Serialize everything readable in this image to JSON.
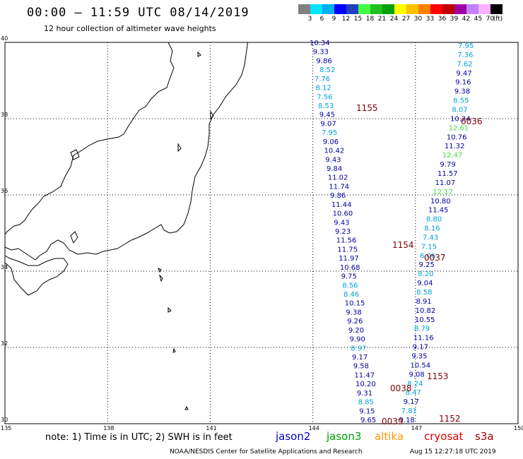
{
  "header": {
    "title": "00:00 – 11:59 UTC 08/14/2019",
    "subtitle": "12 hour collection of altimeter wave heights"
  },
  "legend": {
    "labels": [
      "3",
      "6",
      "9",
      "12",
      "15",
      "18",
      "21",
      "24",
      "27",
      "30",
      "33",
      "36",
      "39",
      "42",
      "45",
      "70",
      "(ft)"
    ],
    "colors": [
      "#808080",
      "#00e5ff",
      "#00b0f0",
      "#0000ff",
      "#2040c0",
      "#40ff40",
      "#20c020",
      "#00a000",
      "#ffff00",
      "#ffc000",
      "#ff8000",
      "#ff0000",
      "#c00000",
      "#a000a0",
      "#c080ff",
      "#ffb0ff",
      "#000000"
    ]
  },
  "axes": {
    "lat_labels": [
      "40",
      "38",
      "36",
      "34",
      "32",
      "30"
    ],
    "lon_labels": [
      "135",
      "138",
      "141",
      "144",
      "147",
      "150"
    ]
  },
  "tracks": [
    {
      "color": "#0000a0",
      "values": [
        "10.34",
        "9.33",
        "9.86"
      ]
    },
    {
      "color": "#00a0e0",
      "values": [
        "8.52",
        "7.76",
        "8.12",
        "7.56",
        "8.53"
      ]
    },
    {
      "color": "#0000a0",
      "values": [
        "9.45",
        "9.07"
      ]
    },
    {
      "color": "#00a0e0",
      "values": [
        "7.95"
      ]
    },
    {
      "color": "#0000a0",
      "values": [
        "9.06",
        "10.42",
        "9.43",
        "9.84",
        "11.02",
        "11.74",
        "9.86",
        "11.44",
        "10.60",
        "9.43",
        "9.23",
        "11.56",
        "11.75",
        "11.97",
        "10.68",
        "9.75"
      ]
    },
    {
      "color": "#00a0e0",
      "values": [
        "8.56",
        "8.46"
      ]
    },
    {
      "color": "#0000a0",
      "values": [
        "10.15",
        "9.38",
        "9.26",
        "9.20",
        "9.90"
      ]
    },
    {
      "color": "#00a0e0",
      "values": [
        "8.97"
      ]
    },
    {
      "color": "#0000a0",
      "values": [
        "9.17",
        "9.58",
        "11.47",
        "10.20",
        "9.31"
      ]
    },
    {
      "color": "#00a0e0",
      "values": [
        "8.85"
      ]
    },
    {
      "color": "#0000a0",
      "values": [
        "9.15",
        "9.65"
      ]
    }
  ],
  "tracks2": [
    {
      "color": "#00a0e0",
      "values": [
        "7.95",
        "7.36",
        "7.62"
      ]
    },
    {
      "color": "#0000a0",
      "values": [
        "9.47",
        "9.16",
        "9.38"
      ]
    },
    {
      "color": "#00a0e0",
      "values": [
        "8.55",
        "8.07"
      ]
    },
    {
      "color": "#0000a0",
      "values": [
        "10.24"
      ]
    },
    {
      "color": "#40e040",
      "values": [
        "12.61"
      ]
    },
    {
      "color": "#0000a0",
      "values": [
        "10.76",
        "11.32"
      ]
    },
    {
      "color": "#40e040",
      "values": [
        "12.47"
      ]
    },
    {
      "color": "#0000a0",
      "values": [
        "9.79",
        "11.57",
        "11.07"
      ]
    },
    {
      "color": "#40e040",
      "values": [
        "12.17"
      ]
    },
    {
      "color": "#0000a0",
      "values": [
        "10.80",
        "11.45"
      ]
    },
    {
      "color": "#00a0e0",
      "values": [
        "8.80",
        "8.16",
        "7.43",
        "7.15",
        "6.06"
      ]
    },
    {
      "color": "#0000a0",
      "values": [
        "9.25"
      ]
    },
    {
      "color": "#00a0e0",
      "values": [
        "8.20"
      ]
    },
    {
      "color": "#0000a0",
      "values": [
        "9.04"
      ]
    },
    {
      "color": "#00a0e0",
      "values": [
        "8.58"
      ]
    },
    {
      "color": "#0000a0",
      "values": [
        "8.91",
        "10.82",
        "10.55"
      ]
    },
    {
      "color": "#00a0e0",
      "values": [
        "8.79"
      ]
    },
    {
      "color": "#0000a0",
      "values": [
        "11.16",
        "9.17",
        "9.35",
        "10.54",
        "9.08"
      ]
    },
    {
      "color": "#00a0e0",
      "values": [
        "8.24",
        "8.47"
      ]
    },
    {
      "color": "#0000a0",
      "values": [
        "9.17"
      ]
    },
    {
      "color": "#00a0e0",
      "values": [
        "7.81"
      ]
    },
    {
      "color": "#0000a0",
      "values": [
        "9.18"
      ]
    }
  ],
  "time_tags": [
    "1155",
    "0036",
    "1154",
    "0037",
    "1153",
    "0038",
    "1152",
    "0039"
  ],
  "note": "note: 1) Time is in UTC; 2) SWH is in feet",
  "satellites": [
    {
      "name": "jason2",
      "color": "#0000c0"
    },
    {
      "name": "jason3",
      "color": "#00a000"
    },
    {
      "name": "altika",
      "color": "#ff9900"
    },
    {
      "name": "cryosat",
      "color": "#e00000"
    },
    {
      "name": "s3a",
      "color": "#a00000"
    }
  ],
  "credit": "NOAA/NESDIS Center for Satellite Applications and Research",
  "stamp": "Aug 15 12:27:18 UTC 2019"
}
